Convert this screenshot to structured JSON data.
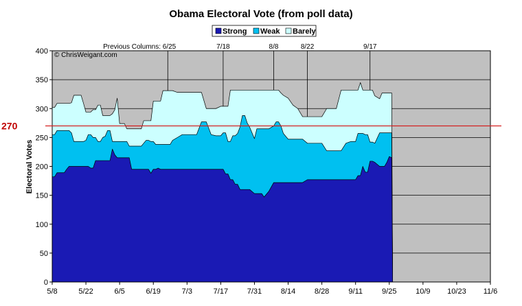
{
  "chart_data": {
    "type": "area",
    "title": "Obama Electoral Vote (from poll data)",
    "ylabel": "Electoral Votes",
    "xlabel": "",
    "ylim": [
      0,
      400
    ],
    "yticks": [
      0,
      50,
      100,
      150,
      200,
      250,
      300,
      350,
      400
    ],
    "xlim": [
      0,
      182
    ],
    "xticks": [
      {
        "day": 0,
        "label": "5/8"
      },
      {
        "day": 14,
        "label": "5/22"
      },
      {
        "day": 28,
        "label": "6/5"
      },
      {
        "day": 42,
        "label": "6/19"
      },
      {
        "day": 56,
        "label": "7/3"
      },
      {
        "day": 70,
        "label": "7/17"
      },
      {
        "day": 84,
        "label": "7/31"
      },
      {
        "day": 98,
        "label": "8/14"
      },
      {
        "day": 112,
        "label": "8/28"
      },
      {
        "day": 126,
        "label": "9/11"
      },
      {
        "day": 140,
        "label": "9/25"
      },
      {
        "day": 154,
        "label": "10/9"
      },
      {
        "day": 168,
        "label": "10/23"
      },
      {
        "day": 182,
        "label": "11/6"
      }
    ],
    "grid": true,
    "legend_position": "top",
    "colors": {
      "strong": "#1a1ab4",
      "weak": "#00c0f0",
      "barely": "#ccffff",
      "plot_bg": "#c0c0c0",
      "reference": "#d42020"
    },
    "reference_line": {
      "value": 270,
      "label": "270"
    },
    "copyright": "© ChrisWeigant.com",
    "annotations": [
      {
        "day": 48,
        "label": "Previous Columns: 6/25",
        "anchor": "end"
      },
      {
        "day": 71,
        "label": "7/18",
        "anchor": "middle"
      },
      {
        "day": 92,
        "label": "8/8",
        "anchor": "middle"
      },
      {
        "day": 106,
        "label": "8/22",
        "anchor": "middle"
      },
      {
        "day": 132,
        "label": "9/17",
        "anchor": "middle"
      }
    ],
    "x_days": [
      0,
      1,
      2,
      5,
      6,
      7,
      8,
      9,
      10,
      11,
      12,
      13,
      14,
      15,
      16,
      17,
      18,
      19,
      20,
      21,
      22,
      23,
      24,
      25,
      26,
      27,
      28,
      29,
      30,
      31,
      32,
      33,
      34,
      35,
      36,
      37,
      38,
      39,
      40,
      41,
      42,
      43,
      44,
      45,
      46,
      47,
      48,
      49,
      50,
      52,
      54,
      56,
      58,
      60,
      62,
      64,
      66,
      68,
      70,
      71,
      72,
      73,
      74,
      75,
      76,
      77,
      78,
      79,
      80,
      81,
      82,
      84,
      85,
      86,
      87,
      88,
      90,
      92,
      93,
      94,
      95,
      96,
      98,
      100,
      102,
      104,
      106,
      108,
      110,
      112,
      114,
      116,
      118,
      120,
      122,
      124,
      125,
      126,
      127,
      128,
      129,
      130,
      131,
      132,
      133,
      134,
      136,
      137,
      138,
      139,
      140,
      141
    ],
    "series": [
      {
        "name": "Strong",
        "values": [
          182,
          182,
          189,
          189,
          195,
          200,
          200,
          200,
          200,
          200,
          200,
          200,
          200,
          200,
          197,
          197,
          210,
          210,
          210,
          210,
          210,
          210,
          210,
          230,
          220,
          215,
          215,
          215,
          215,
          215,
          215,
          195,
          195,
          195,
          195,
          195,
          195,
          195,
          195,
          188,
          195,
          195,
          197,
          195,
          195,
          195,
          195,
          195,
          195,
          195,
          195,
          195,
          195,
          195,
          195,
          195,
          195,
          195,
          195,
          195,
          187,
          187,
          177,
          177,
          169,
          169,
          160,
          160,
          160,
          160,
          160,
          153,
          153,
          153,
          153,
          147,
          157,
          172,
          172,
          172,
          172,
          172,
          172,
          172,
          172,
          172,
          177,
          177,
          177,
          177,
          177,
          177,
          177,
          177,
          177,
          177,
          177,
          177,
          184,
          184,
          200,
          190,
          190,
          209,
          209,
          207,
          200,
          200,
          200,
          207,
          217,
          215
        ]
      },
      {
        "name": "Weak",
        "values": [
          255,
          255,
          262,
          262,
          262,
          262,
          258,
          243,
          243,
          243,
          243,
          243,
          245,
          255,
          255,
          250,
          250,
          243,
          243,
          250,
          252,
          262,
          262,
          243,
          243,
          243,
          243,
          243,
          243,
          243,
          235,
          235,
          235,
          235,
          235,
          235,
          240,
          245,
          245,
          243,
          243,
          238,
          238,
          238,
          238,
          238,
          238,
          238,
          245,
          250,
          255,
          255,
          255,
          255,
          277,
          277,
          255,
          253,
          253,
          258,
          258,
          243,
          243,
          253,
          253,
          257,
          268,
          288,
          288,
          275,
          268,
          248,
          265,
          265,
          265,
          265,
          265,
          270,
          277,
          277,
          270,
          257,
          247,
          247,
          247,
          247,
          240,
          240,
          240,
          240,
          227,
          227,
          227,
          227,
          240,
          243,
          243,
          243,
          257,
          257,
          257,
          255,
          255,
          242,
          242,
          240,
          258,
          258,
          258,
          258,
          258,
          258
        ]
      },
      {
        "name": "Barely",
        "values": [
          302,
          302,
          309,
          309,
          309,
          309,
          310,
          323,
          323,
          323,
          323,
          309,
          294,
          294,
          294,
          298,
          298,
          306,
          306,
          288,
          288,
          288,
          288,
          291,
          298,
          318,
          274,
          274,
          274,
          265,
          265,
          265,
          265,
          265,
          265,
          265,
          279,
          279,
          279,
          279,
          313,
          313,
          313,
          313,
          331,
          331,
          331,
          331,
          331,
          328,
          328,
          328,
          328,
          328,
          328,
          300,
          300,
          300,
          304,
          304,
          304,
          304,
          332,
          332,
          332,
          332,
          332,
          332,
          332,
          332,
          332,
          332,
          332,
          332,
          332,
          332,
          332,
          332,
          332,
          332,
          327,
          323,
          318,
          306,
          300,
          286,
          286,
          286,
          286,
          286,
          300,
          300,
          300,
          332,
          332,
          332,
          332,
          332,
          332,
          345,
          332,
          332,
          332,
          332,
          332,
          322,
          317,
          327,
          327,
          327,
          327,
          327
        ]
      }
    ]
  }
}
